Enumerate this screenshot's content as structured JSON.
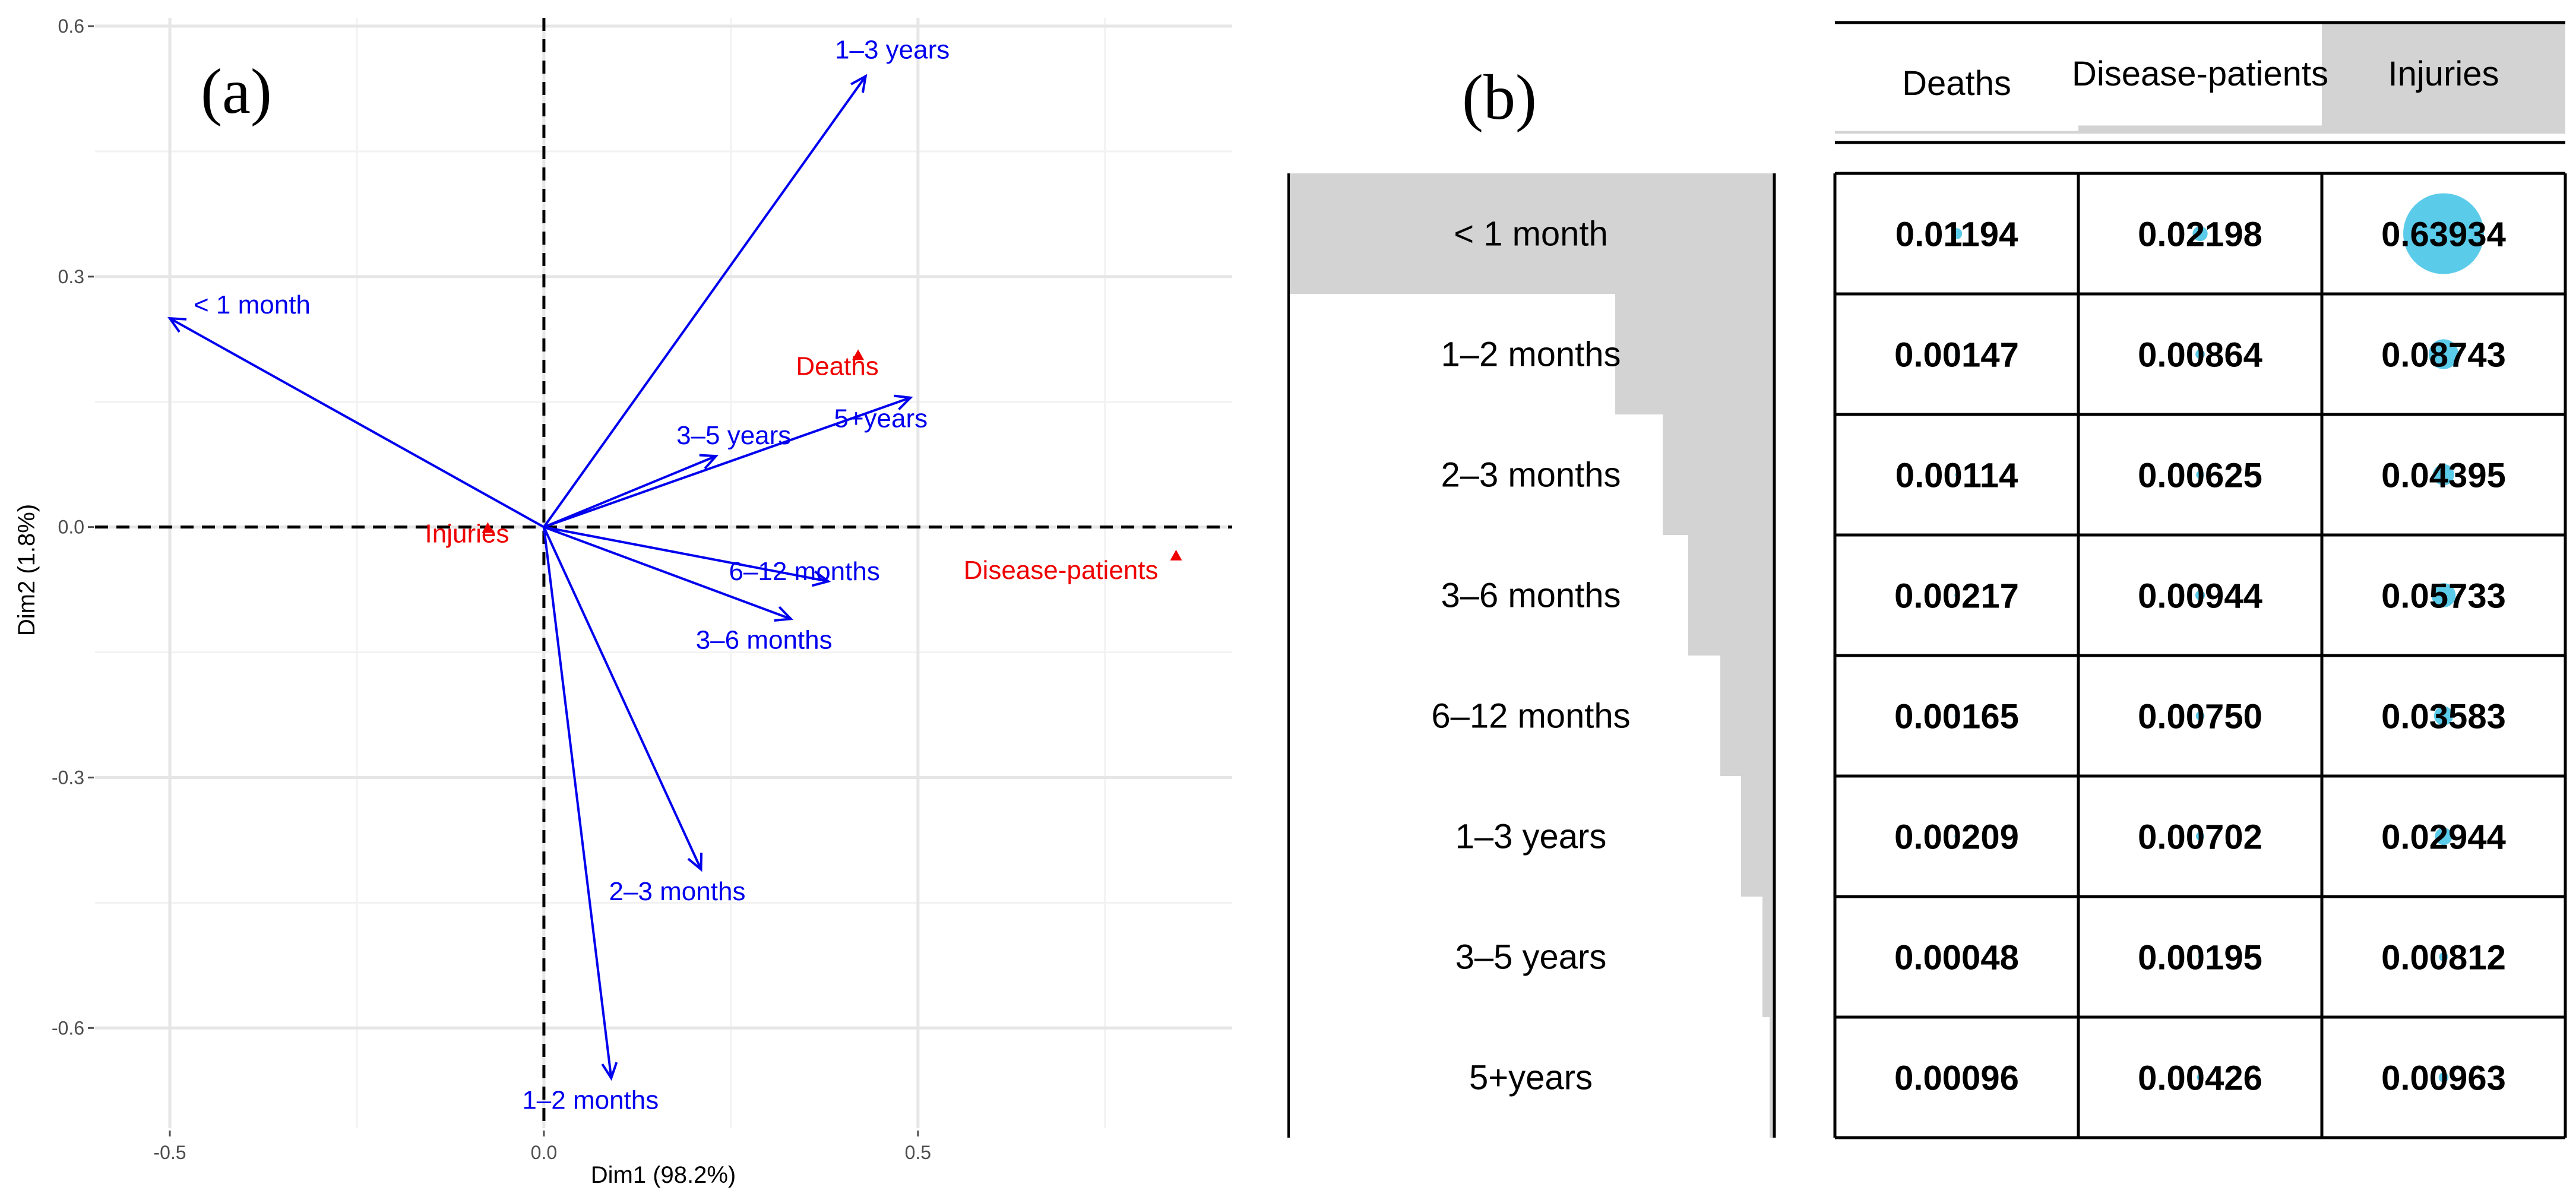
{
  "chart_data": [
    {
      "type": "scatter",
      "subtype": "correspondence-analysis-biplot",
      "panel_label": "(a)",
      "xlabel": "Dim1 (98.2%)",
      "ylabel": "Dim2 (1.8%)",
      "xlim": [
        -0.6,
        0.92
      ],
      "ylim": [
        -0.72,
        0.61
      ],
      "x_ticks": [
        -0.5,
        0.0,
        0.5
      ],
      "x_tick_labels": [
        "-0.5",
        "0.0",
        "0.5"
      ],
      "y_ticks": [
        -0.6,
        -0.3,
        0.0,
        0.3,
        0.6
      ],
      "y_tick_labels": [
        "-0.6",
        "-0.3",
        "0.0",
        "0.3",
        "0.6"
      ],
      "grid": true,
      "arrow_color": "#0000ee",
      "point_color": "#ee0000",
      "arrows": [
        {
          "label": "< 1 month",
          "x": -0.5,
          "y": 0.25
        },
        {
          "label": "1–2 months",
          "x": 0.09,
          "y": -0.66
        },
        {
          "label": "2–3 months",
          "x": 0.21,
          "y": -0.41
        },
        {
          "label": "3–6 months",
          "x": 0.33,
          "y": -0.11
        },
        {
          "label": "6–12 months",
          "x": 0.38,
          "y": -0.065
        },
        {
          "label": "1–3 years",
          "x": 0.43,
          "y": 0.54
        },
        {
          "label": "3–5 years",
          "x": 0.23,
          "y": 0.085
        },
        {
          "label": "5+years",
          "x": 0.49,
          "y": 0.155
        }
      ],
      "points": [
        {
          "label": "Deaths",
          "x": 0.42,
          "y": 0.205
        },
        {
          "label": "Injuries",
          "x": -0.075,
          "y": -0.002
        },
        {
          "label": "Disease-patients",
          "x": 0.845,
          "y": -0.035
        }
      ]
    },
    {
      "type": "table",
      "subtype": "balloon-plot",
      "panel_label": "(b)",
      "columns": [
        "Deaths",
        "Disease-patients",
        "Injuries"
      ],
      "rows": [
        "< 1 month",
        "1–2 months",
        "2–3 months",
        "3–6 months",
        "6–12 months",
        "1–3 years",
        "3–5 years",
        "5+years"
      ],
      "cell_labels": [
        [
          "0.01194",
          "0.02198",
          "0.63934"
        ],
        [
          "0.00147",
          "0.00864",
          "0.08743"
        ],
        [
          "0.00114",
          "0.00625",
          "0.04395"
        ],
        [
          "0.00217",
          "0.00944",
          "0.05733"
        ],
        [
          "0.00165",
          "0.00750",
          "0.03583"
        ],
        [
          "0.00209",
          "0.00702",
          "0.02944"
        ],
        [
          "0.00048",
          "0.00195",
          "0.00812"
        ],
        [
          "0.00096",
          "0.00426",
          "0.00963"
        ]
      ],
      "values": [
        [
          0.01194,
          0.02198,
          0.63934
        ],
        [
          0.00147,
          0.00864,
          0.08743
        ],
        [
          0.00114,
          0.00625,
          0.04395
        ],
        [
          0.00217,
          0.00944,
          0.05733
        ],
        [
          0.00165,
          0.0075,
          0.03583
        ],
        [
          0.00209,
          0.00702,
          0.02944
        ],
        [
          0.00048,
          0.00195,
          0.00812
        ],
        [
          0.00096,
          0.00426,
          0.00963
        ]
      ],
      "row_margin": [
        0.67326,
        0.09754,
        0.05134,
        0.06894,
        0.04498,
        0.03855,
        0.01055,
        0.01485
      ],
      "col_margin": [
        0.0219,
        0.06704,
        0.91107
      ],
      "balloon_color": "#5bcbea",
      "margin_bar_color": "#d3d3d3"
    }
  ]
}
